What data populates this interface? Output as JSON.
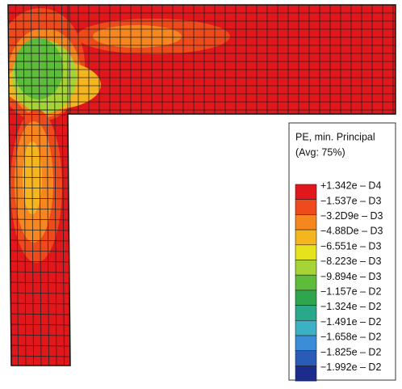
{
  "legend": {
    "title": [
      "PE, min. Principal",
      "(Avg: 75%)"
    ],
    "entries": [
      {
        "label": "+1.342e – D4",
        "color": "#e2171c"
      },
      {
        "label": "−1.537e – D3",
        "color": "#ee4a1b"
      },
      {
        "label": "−3.2D9e – D3",
        "color": "#f6861f"
      },
      {
        "label": "−4.88De – D3",
        "color": "#f5b51f"
      },
      {
        "label": "−6.551e – D3",
        "color": "#e6e31d"
      },
      {
        "label": "−8.223e – D3",
        "color": "#a6d335"
      },
      {
        "label": "−9.894e – D3",
        "color": "#5dbd3b"
      },
      {
        "label": "−1.157e – D2",
        "color": "#2fa64e"
      },
      {
        "label": "−1.324e – D2",
        "color": "#2aa98a"
      },
      {
        "label": "−1.491e – D2",
        "color": "#3cb1c6"
      },
      {
        "label": "−1.658e – D2",
        "color": "#3b8dd8"
      },
      {
        "label": "−1.825e – D2",
        "color": "#2a5bb6"
      },
      {
        "label": "−1.992e – D2",
        "color": "#1c2c8c"
      }
    ]
  }
}
